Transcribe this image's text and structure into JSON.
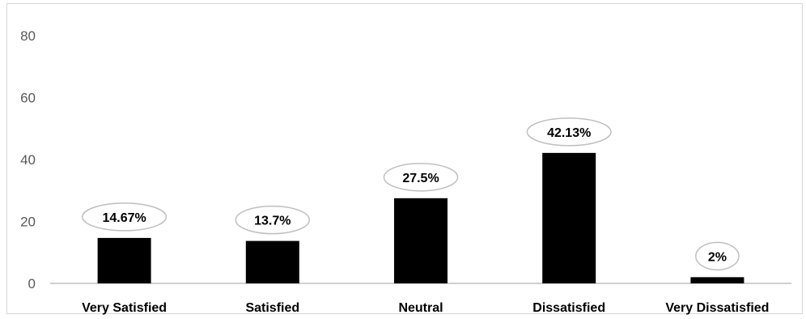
{
  "chart_data": {
    "type": "bar",
    "categories": [
      "Very Satisfied",
      "Satisfied",
      "Neutral",
      "Dissatisfied",
      "Very Dissatisfied"
    ],
    "values": [
      14.67,
      13.7,
      27.5,
      42.13,
      2
    ],
    "data_labels": [
      "14.67%",
      "13.7%",
      "27.5%",
      "42.13%",
      "2%"
    ],
    "yticks": [
      "0",
      "20",
      "40",
      "60",
      "80"
    ],
    "ylim": [
      0,
      80
    ],
    "grid": false,
    "bar_color": "#000000",
    "label_callout_border": "#bfbfbf",
    "title": "",
    "xlabel": "",
    "ylabel": ""
  }
}
